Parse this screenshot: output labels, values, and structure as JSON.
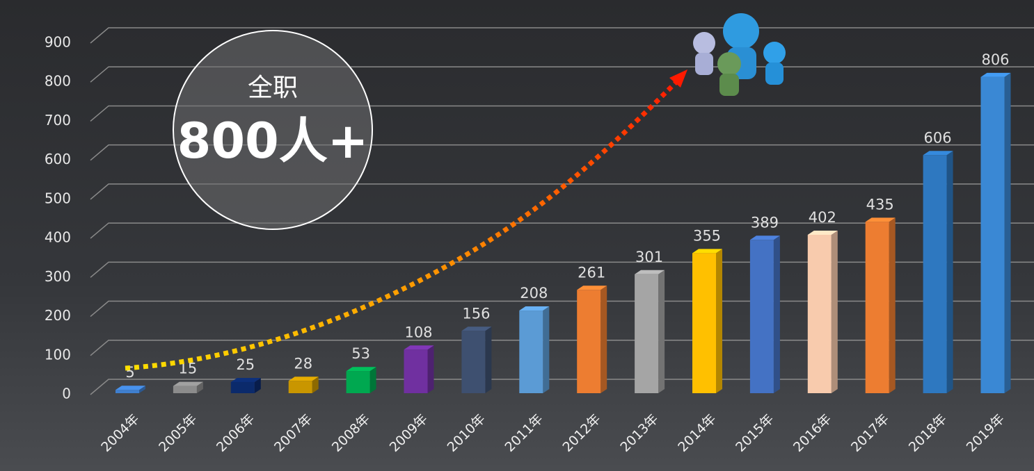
{
  "chart_data": {
    "type": "bar3d",
    "categories": [
      "2004年",
      "2005年",
      "2006年",
      "2007年",
      "2008年",
      "2009年",
      "2010年",
      "2011年",
      "2012年",
      "2013年",
      "2014年",
      "2015年",
      "2016年",
      "2017年",
      "2018年",
      "2019年"
    ],
    "values": [
      5,
      15,
      25,
      28,
      53,
      108,
      156,
      208,
      261,
      301,
      355,
      389,
      402,
      435,
      606,
      806
    ],
    "colors": [
      "#3f7fcf",
      "#8c8c8c",
      "#0b2a6b",
      "#c99600",
      "#00a850",
      "#7030a0",
      "#3e5070",
      "#5b9bd5",
      "#ed7d31",
      "#a5a5a5",
      "#ffc000",
      "#4472c4",
      "#f8cbad",
      "#ed7d31",
      "#2e78c0",
      "#3a88d4"
    ],
    "ylim": [
      0,
      900
    ],
    "yticks": [
      0,
      100,
      200,
      300,
      400,
      500,
      600,
      700,
      800,
      900
    ],
    "grid": true,
    "annotation": {
      "line1": "全职",
      "line2": "800人+"
    }
  }
}
